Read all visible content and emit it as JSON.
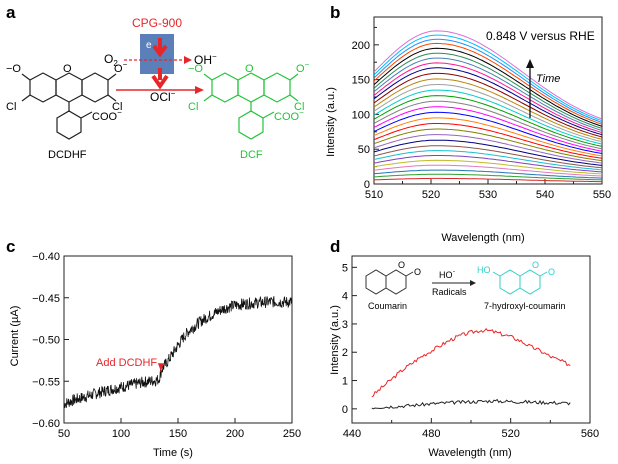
{
  "panels": {
    "a": {
      "letter": "a",
      "catalyst": "CPG-900",
      "electron": "e",
      "o2": "O",
      "o2_sub": "2",
      "oh": "OH",
      "oh_sup": "−",
      "ocl": "OCl",
      "ocl_sup": "−",
      "reactant_label": "DCDHF",
      "product_label": "DCF",
      "atoms": {
        "o_minus": "−O",
        "o": "O",
        "cl": "Cl",
        "coo": "COO",
        "coo_sup": "−",
        "o_minus_right": "O",
        "minus": "−"
      },
      "colors": {
        "catalyst_box": "#5b7fb8",
        "red": "#e8262a",
        "green": "#23c43a",
        "black": "#222222"
      }
    },
    "d_inset": {
      "reactant": "Coumarin",
      "product": "7-hydroxyl-coumarin",
      "reagent_top": "HO",
      "reagent_top_sup": "·",
      "reagent_bottom": "Radicals",
      "ho": "HO",
      "o": "O",
      "colors": {
        "product": "#2fd0c8"
      }
    }
  },
  "chart_data": [
    {
      "id": "b",
      "letter": "b",
      "type": "line",
      "xlabel": "Wavelength (nm)",
      "ylabel": "Intensity (a.u.)",
      "xlim": [
        510,
        550
      ],
      "ylim": [
        0,
        240
      ],
      "xticks": [
        510,
        520,
        530,
        540,
        550
      ],
      "yticks": [
        0,
        50,
        100,
        150,
        200
      ],
      "yminor": [
        25,
        75,
        125,
        175,
        225
      ],
      "xminor": [
        515,
        525,
        535,
        545
      ],
      "annotation": "0.848 V versus RHE",
      "arrow_label": "Time",
      "peak_x": 521,
      "series": [
        {
          "peak": 8,
          "color": "#d62728"
        },
        {
          "peak": 14,
          "color": "#2ca02c"
        },
        {
          "peak": 20,
          "color": "#1f77b4"
        },
        {
          "peak": 27,
          "color": "#e377c2"
        },
        {
          "peak": 34,
          "color": "#bcbd22"
        },
        {
          "peak": 41,
          "color": "#7f3fbf"
        },
        {
          "peak": 48,
          "color": "#17becf"
        },
        {
          "peak": 55,
          "color": "#8c564b"
        },
        {
          "peak": 63,
          "color": "#000080"
        },
        {
          "peak": 71,
          "color": "#9467bd"
        },
        {
          "peak": 79,
          "color": "#808000"
        },
        {
          "peak": 87,
          "color": "#ff0000"
        },
        {
          "peak": 95,
          "color": "#ff7f0e"
        },
        {
          "peak": 103,
          "color": "#0000ff"
        },
        {
          "peak": 111,
          "color": "#ff00ff"
        },
        {
          "peak": 119,
          "color": "#808080"
        },
        {
          "peak": 127,
          "color": "#00a000"
        },
        {
          "peak": 135,
          "color": "#00cccc"
        },
        {
          "peak": 143,
          "color": "#a0a0a0"
        },
        {
          "peak": 151,
          "color": "#b8860b"
        },
        {
          "peak": 159,
          "color": "#8b0000"
        },
        {
          "peak": 167,
          "color": "#00008b"
        },
        {
          "peak": 174,
          "color": "#ff1493"
        },
        {
          "peak": 181,
          "color": "#4682b4"
        },
        {
          "peak": 188,
          "color": "#2e8b57"
        },
        {
          "peak": 195,
          "color": "#000000"
        },
        {
          "peak": 202,
          "color": "#ff4500"
        },
        {
          "peak": 208,
          "color": "#1e90ff"
        },
        {
          "peak": 214,
          "color": "#00bfff"
        },
        {
          "peak": 220,
          "color": "#da70d6"
        }
      ]
    },
    {
      "id": "c",
      "letter": "c",
      "type": "line",
      "xlabel": "Time (s)",
      "ylabel": "Current (µA)",
      "xlim": [
        50,
        250
      ],
      "ylim": [
        -0.6,
        -0.4
      ],
      "xticks": [
        50,
        100,
        150,
        200,
        250
      ],
      "yticks": [
        -0.6,
        -0.55,
        -0.5,
        -0.45,
        -0.4
      ],
      "ytick_labels": [
        "−0.60",
        "−0.55",
        "−0.50",
        "−0.45",
        "−0.40"
      ],
      "annotation": "Add DCDHF",
      "annotation_at": [
        135,
        -0.538
      ],
      "annotation_color": "#e8262a",
      "series": [
        {
          "color": "#111111",
          "x": [
            50,
            60,
            70,
            80,
            90,
            100,
            110,
            120,
            130,
            133,
            136,
            140,
            145,
            150,
            155,
            160,
            170,
            180,
            190,
            200,
            210,
            220,
            230,
            240,
            250
          ],
          "y": [
            -0.577,
            -0.572,
            -0.568,
            -0.564,
            -0.56,
            -0.557,
            -0.554,
            -0.551,
            -0.549,
            -0.548,
            -0.535,
            -0.528,
            -0.518,
            -0.507,
            -0.497,
            -0.489,
            -0.478,
            -0.47,
            -0.463,
            -0.459,
            -0.457,
            -0.456,
            -0.455,
            -0.455,
            -0.455
          ]
        }
      ]
    },
    {
      "id": "d",
      "letter": "d",
      "type": "line",
      "xlabel": "Wavelength (nm)",
      "ylabel": "Intensity (a.u.)",
      "xlim": [
        440,
        560
      ],
      "ylim": [
        -0.5,
        5.4
      ],
      "xticks": [
        440,
        480,
        520,
        560
      ],
      "xminor": [
        460,
        500,
        540
      ],
      "yticks": [
        0,
        1,
        2,
        3,
        4,
        5
      ],
      "series": [
        {
          "name": "7-hydroxyl-coumarin",
          "color": "#e8262a",
          "x": [
            450,
            455,
            460,
            465,
            470,
            475,
            480,
            485,
            490,
            495,
            500,
            505,
            510,
            515,
            520,
            525,
            530,
            535,
            540,
            545,
            550
          ],
          "y": [
            0.45,
            0.75,
            1.05,
            1.35,
            1.6,
            1.85,
            2.05,
            2.25,
            2.45,
            2.6,
            2.7,
            2.78,
            2.75,
            2.65,
            2.55,
            2.4,
            2.2,
            2.05,
            1.85,
            1.7,
            1.55
          ]
        },
        {
          "name": "Coumarin",
          "color": "#222222",
          "x": [
            450,
            460,
            470,
            480,
            490,
            500,
            510,
            520,
            530,
            540,
            550
          ],
          "y": [
            0.05,
            0.08,
            0.12,
            0.18,
            0.22,
            0.25,
            0.28,
            0.26,
            0.24,
            0.22,
            0.2
          ]
        }
      ]
    }
  ]
}
